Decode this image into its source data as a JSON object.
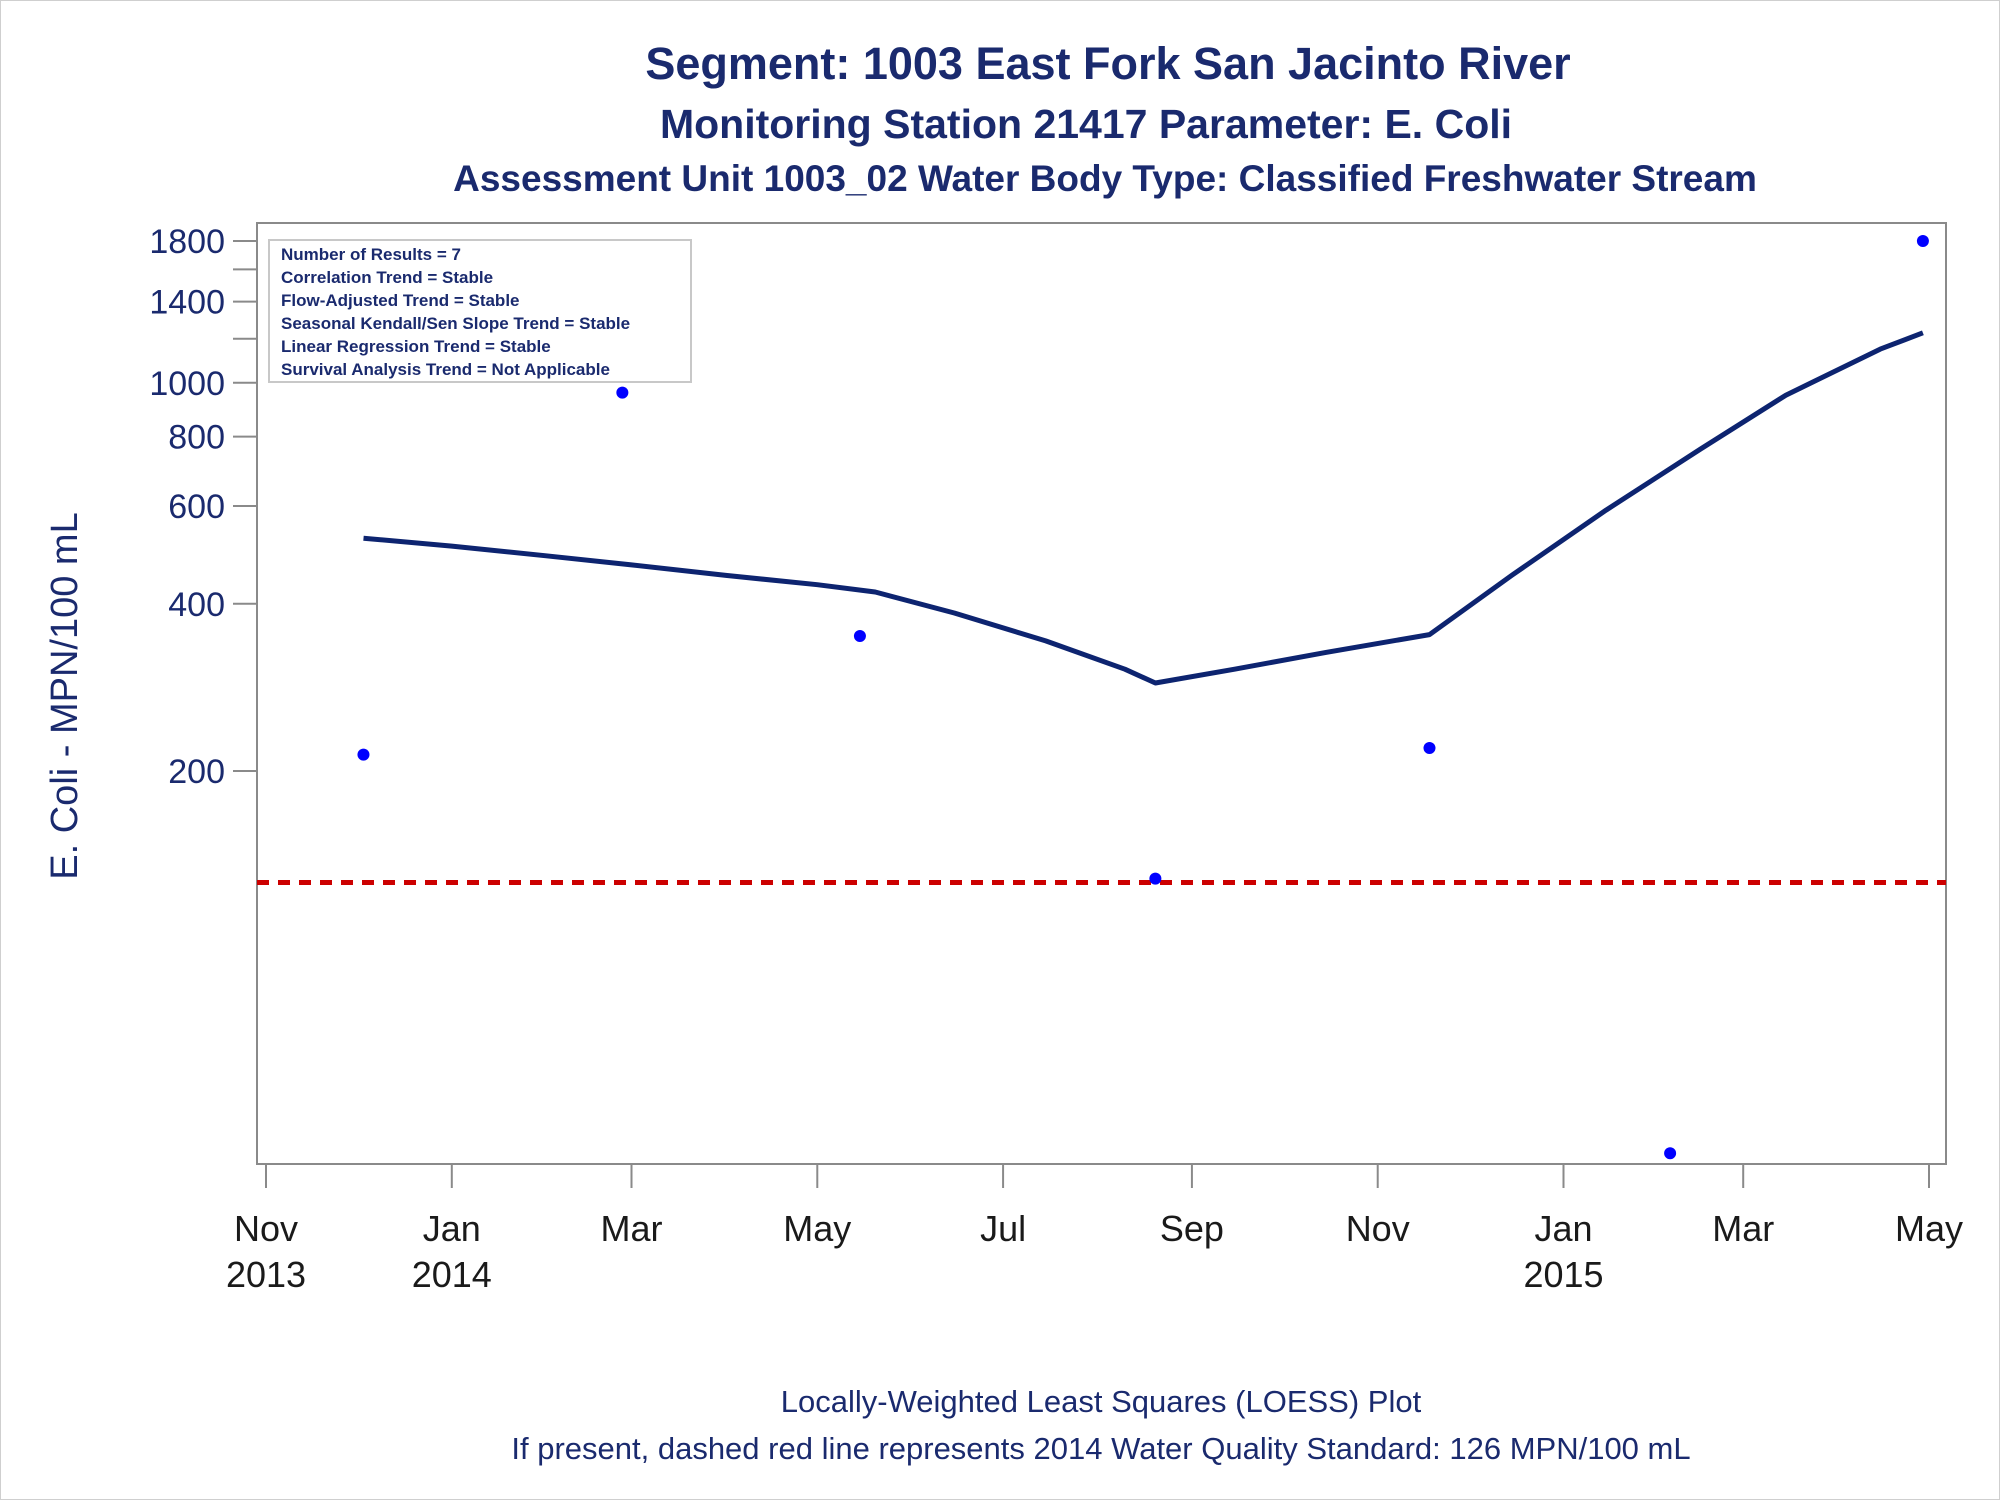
{
  "titles": {
    "line1": "Segment: 1003  East Fork San Jacinto River",
    "line2": "Monitoring Station 21417 Parameter: E. Coli",
    "line3": "Assessment Unit 1003_02   Water Body Type: Classified Freshwater Stream"
  },
  "stats_box": [
    "Number of Results = 7",
    "Correlation Trend = Stable",
    "Flow-Adjusted Trend = Stable",
    "Seasonal Kendall/Sen Slope Trend = Stable",
    "Linear Regression Trend = Stable",
    "Survival Analysis Trend = Not Applicable"
  ],
  "footnotes": {
    "line1": "Locally-Weighted Least Squares (LOESS) Plot",
    "line2": "If present, dashed red line represents 2014 Water Quality Standard: 126 MPN/100 mL"
  },
  "chart_data": {
    "type": "scatter",
    "ylabel": "E. Coli - MPN/100 mL",
    "xlabel": "",
    "yscale": "log",
    "ylim": [
      42,
      2000
    ],
    "xlim": [
      "2013-10-30",
      "2015-05-02"
    ],
    "yticks": [
      {
        "value": 200,
        "label": "200"
      },
      {
        "value": 400,
        "label": "400"
      },
      {
        "value": 600,
        "label": "600"
      },
      {
        "value": 800,
        "label": "800"
      },
      {
        "value": 1000,
        "label": "1000"
      },
      {
        "value": 1400,
        "label": "1400"
      },
      {
        "value": 1800,
        "label": "1800"
      }
    ],
    "yminor_ticks": [
      1200,
      1600
    ],
    "xticks": [
      {
        "date": "2013-11-01",
        "label": [
          "Nov",
          "2013"
        ]
      },
      {
        "date": "2014-01-01",
        "label": [
          "Jan",
          "2014"
        ]
      },
      {
        "date": "2014-03-01",
        "label": [
          "Mar"
        ]
      },
      {
        "date": "2014-05-01",
        "label": [
          "May"
        ]
      },
      {
        "date": "2014-07-01",
        "label": [
          "Jul"
        ]
      },
      {
        "date": "2014-09-01",
        "label": [
          "Sep"
        ]
      },
      {
        "date": "2014-11-01",
        "label": [
          "Nov"
        ]
      },
      {
        "date": "2015-01-01",
        "label": [
          "Jan",
          "2015"
        ]
      },
      {
        "date": "2015-03-01",
        "label": [
          "Mar"
        ]
      },
      {
        "date": "2015-05-01",
        "label": [
          "May"
        ]
      }
    ],
    "points": [
      {
        "date": "2013-12-03",
        "value": 214
      },
      {
        "date": "2014-02-26",
        "value": 960
      },
      {
        "date": "2014-05-15",
        "value": 350
      },
      {
        "date": "2014-08-20",
        "value": 128
      },
      {
        "date": "2014-11-18",
        "value": 220
      },
      {
        "date": "2015-02-05",
        "value": 41
      },
      {
        "date": "2015-04-29",
        "value": 1800
      }
    ],
    "loess": [
      {
        "date": "2013-12-03",
        "value": 525
      },
      {
        "date": "2014-01-01",
        "value": 508
      },
      {
        "date": "2014-02-01",
        "value": 488
      },
      {
        "date": "2014-03-01",
        "value": 470
      },
      {
        "date": "2014-04-01",
        "value": 450
      },
      {
        "date": "2014-05-01",
        "value": 433
      },
      {
        "date": "2014-05-20",
        "value": 420
      },
      {
        "date": "2014-06-15",
        "value": 385
      },
      {
        "date": "2014-07-15",
        "value": 343
      },
      {
        "date": "2014-08-10",
        "value": 305
      },
      {
        "date": "2014-08-20",
        "value": 288
      },
      {
        "date": "2014-09-15",
        "value": 305
      },
      {
        "date": "2014-10-15",
        "value": 327
      },
      {
        "date": "2014-11-18",
        "value": 352
      },
      {
        "date": "2014-12-15",
        "value": 450
      },
      {
        "date": "2015-01-15",
        "value": 590
      },
      {
        "date": "2015-02-15",
        "value": 760
      },
      {
        "date": "2015-03-15",
        "value": 950
      },
      {
        "date": "2015-04-15",
        "value": 1150
      },
      {
        "date": "2015-04-29",
        "value": 1230
      }
    ],
    "standard_line": {
      "value": 126
    },
    "colors": {
      "points": "#0000ff",
      "loess": "#0d2470",
      "standard": "#cc0000",
      "text": "#1a2a6e",
      "frame": "#8a8a8a"
    },
    "legend_placement": "top-left",
    "grid": false
  }
}
